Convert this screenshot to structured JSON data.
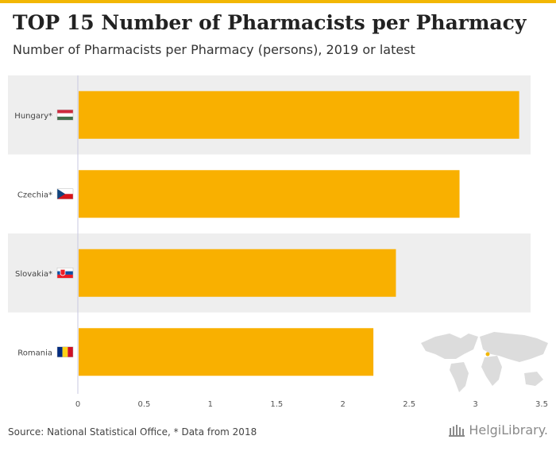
{
  "title": "TOP 15 Number of Pharmacists per Pharmacy",
  "subtitle": "Number of Pharmacists per Pharmacy (persons), 2019 or latest",
  "footer": "Source: National Statistical Office, * Data from 2018",
  "brand": "HelgiLibrary.",
  "colors": {
    "bar": "#f9b000",
    "band": "#eeeeee",
    "accent": "#f2b705"
  },
  "chart_data": {
    "type": "bar",
    "orientation": "horizontal",
    "title": "TOP 15 Number of Pharmacists per Pharmacy",
    "subtitle": "Number of Pharmacists per Pharmacy (persons), 2019 or latest",
    "categories": [
      "Hungary*",
      "Czechia*",
      "Slovakia*",
      "Romania"
    ],
    "values": [
      3.33,
      2.88,
      2.4,
      2.23
    ],
    "flags": [
      "hungary-flag-icon",
      "czechia-flag-icon",
      "slovakia-flag-icon",
      "romania-flag-icon"
    ],
    "xlim": [
      0,
      3.5
    ],
    "xticks": [
      0,
      0.5,
      1,
      1.5,
      2,
      2.5,
      3,
      3.5
    ],
    "xtick_labels": [
      "0",
      "0.5",
      "1",
      "1.5",
      "2",
      "2.5",
      "3",
      "3.5"
    ],
    "xlabel": "",
    "ylabel": "",
    "grid": true
  }
}
